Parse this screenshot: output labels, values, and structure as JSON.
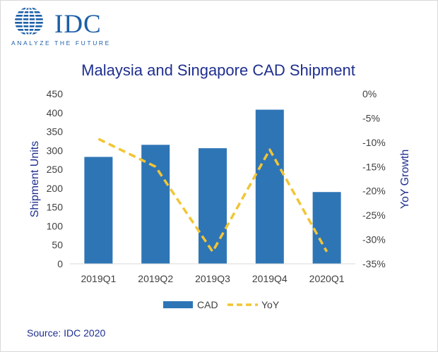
{
  "logo": {
    "text": "IDC",
    "tagline": "ANALYZE THE FUTURE"
  },
  "source": "Source: IDC 2020",
  "colors": {
    "bar": "#2e75b6",
    "line": "#f2c535",
    "text": "#1f2f8f",
    "logo": "#1c5ea8"
  },
  "chart_data": {
    "type": "bar",
    "title": "Malaysia and Singapore CAD Shipment",
    "categories": [
      "2019Q1",
      "2019Q2",
      "2019Q3",
      "2019Q4",
      "2020Q1"
    ],
    "series": [
      {
        "name": "CAD",
        "type": "bar",
        "axis": "left",
        "values": [
          283,
          315,
          306,
          408,
          190
        ]
      },
      {
        "name": "YoY",
        "type": "line",
        "axis": "right",
        "style": "dashed",
        "values": [
          -9.3,
          -15.0,
          -32.5,
          -11.5,
          -32.5
        ]
      }
    ],
    "y_left": {
      "label": "Shipment Units",
      "range": [
        0,
        450
      ],
      "ticks": [
        0,
        50,
        100,
        150,
        200,
        250,
        300,
        350,
        400,
        450
      ],
      "tick_labels": [
        "0",
        "50",
        "100",
        "150",
        "200",
        "250",
        "300",
        "350",
        "400",
        "450"
      ]
    },
    "y_right": {
      "label": "YoY Growth",
      "range": [
        -35,
        0
      ],
      "ticks": [
        0,
        -5,
        -10,
        -15,
        -20,
        -25,
        -30,
        -35
      ],
      "tick_labels": [
        "0%",
        "-5%",
        "-10%",
        "-15%",
        "-20%",
        "-25%",
        "-30%",
        "-35%"
      ]
    },
    "grid": false,
    "legend": {
      "position": "bottom",
      "entries": [
        "CAD",
        "YoY"
      ]
    }
  }
}
